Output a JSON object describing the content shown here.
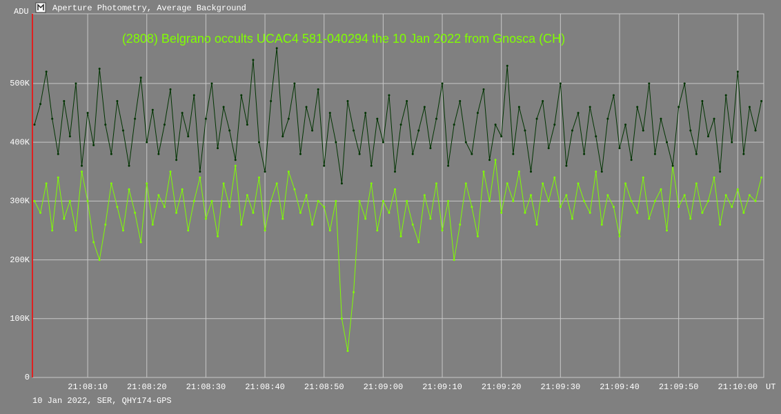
{
  "window_title": "Aperture Photometry, Average Background",
  "footer": "10 Jan 2022, SER, QHY174-GPS",
  "chart_data": {
    "type": "line",
    "title": "(2808) Belgrano occults UCAC4 581-040294 the 10 Jan 2022 from Gnosca (CH)",
    "y_label": "ADU",
    "x_label": "UT",
    "xlim": [
      76080.65,
      76204.4
    ],
    "ylim": [
      0,
      618500
    ],
    "xticks": [
      {
        "value": 76090,
        "label": "21:08:10"
      },
      {
        "value": 76100,
        "label": "21:08:20"
      },
      {
        "value": 76110,
        "label": "21:08:30"
      },
      {
        "value": 76120,
        "label": "21:08:40"
      },
      {
        "value": 76130,
        "label": "21:08:50"
      },
      {
        "value": 76140,
        "label": "21:09:00"
      },
      {
        "value": 76150,
        "label": "21:09:10"
      },
      {
        "value": 76160,
        "label": "21:09:20"
      },
      {
        "value": 76170,
        "label": "21:09:30"
      },
      {
        "value": 76180,
        "label": "21:09:40"
      },
      {
        "value": 76190,
        "label": "21:09:50"
      },
      {
        "value": 76200,
        "label": "21:10:00"
      }
    ],
    "yticks": [
      0,
      {
        "value": 100000,
        "label": "100K"
      },
      {
        "value": 200000,
        "label": "200K"
      },
      {
        "value": 300000,
        "label": "300K"
      },
      {
        "value": 400000,
        "label": "400K"
      },
      {
        "value": 500000,
        "label": "500K"
      }
    ],
    "grid": true,
    "x": [
      76081,
      76082,
      76083,
      76084,
      76085,
      76086,
      76087,
      76088,
      76089,
      76090,
      76091,
      76092,
      76093,
      76094,
      76095,
      76096,
      76097,
      76098,
      76099,
      76100,
      76101,
      76102,
      76103,
      76104,
      76105,
      76106,
      76107,
      76108,
      76109,
      76110,
      76111,
      76112,
      76113,
      76114,
      76115,
      76116,
      76117,
      76118,
      76119,
      76120,
      76121,
      76122,
      76123,
      76124,
      76125,
      76126,
      76127,
      76128,
      76129,
      76130,
      76131,
      76132,
      76133,
      76134,
      76135,
      76136,
      76137,
      76138,
      76139,
      76140,
      76141,
      76142,
      76143,
      76144,
      76145,
      76146,
      76147,
      76148,
      76149,
      76150,
      76151,
      76152,
      76153,
      76154,
      76155,
      76156,
      76157,
      76158,
      76159,
      76160,
      76161,
      76162,
      76163,
      76164,
      76165,
      76166,
      76167,
      76168,
      76169,
      76170,
      76171,
      76172,
      76173,
      76174,
      76175,
      76176,
      76177,
      76178,
      76179,
      76180,
      76181,
      76182,
      76183,
      76184,
      76185,
      76186,
      76187,
      76188,
      76189,
      76190,
      76191,
      76192,
      76193,
      76194,
      76195,
      76196,
      76197,
      76198,
      76199,
      76200,
      76201,
      76202,
      76203,
      76204
    ],
    "series": [
      {
        "color": "#003300",
        "values": [
          430000,
          465000,
          520000,
          440000,
          380000,
          470000,
          410000,
          500000,
          360000,
          450000,
          395000,
          525000,
          430000,
          380000,
          470000,
          420000,
          360000,
          440000,
          510000,
          400000,
          455000,
          380000,
          430000,
          490000,
          370000,
          450000,
          410000,
          480000,
          350000,
          440000,
          500000,
          390000,
          460000,
          420000,
          370000,
          480000,
          430000,
          540000,
          400000,
          350000,
          470000,
          560000,
          410000,
          440000,
          500000,
          380000,
          460000,
          420000,
          490000,
          360000,
          450000,
          400000,
          330000,
          470000,
          420000,
          380000,
          450000,
          360000,
          440000,
          400000,
          480000,
          350000,
          430000,
          470000,
          380000,
          420000,
          460000,
          390000,
          440000,
          500000,
          360000,
          430000,
          470000,
          400000,
          380000,
          450000,
          490000,
          370000,
          430000,
          410000,
          530000,
          380000,
          460000,
          420000,
          350000,
          440000,
          470000,
          390000,
          430000,
          500000,
          360000,
          420000,
          450000,
          380000,
          460000,
          410000,
          350000,
          440000,
          480000,
          390000,
          430000,
          370000,
          460000,
          420000,
          500000,
          380000,
          440000,
          400000,
          360000,
          460000,
          500000,
          420000,
          380000,
          470000,
          410000,
          440000,
          350000,
          480000,
          400000,
          520000,
          380000,
          460000,
          420000,
          470000
        ]
      },
      {
        "color": "#80ff00",
        "values": [
          300000,
          280000,
          330000,
          250000,
          340000,
          270000,
          300000,
          250000,
          350000,
          300000,
          230000,
          200000,
          260000,
          330000,
          290000,
          250000,
          320000,
          280000,
          230000,
          330000,
          260000,
          310000,
          290000,
          350000,
          280000,
          320000,
          250000,
          300000,
          340000,
          270000,
          300000,
          240000,
          330000,
          290000,
          360000,
          260000,
          310000,
          280000,
          340000,
          250000,
          300000,
          330000,
          270000,
          350000,
          320000,
          280000,
          310000,
          260000,
          300000,
          290000,
          250000,
          300000,
          100000,
          45000,
          145000,
          300000,
          270000,
          330000,
          250000,
          300000,
          280000,
          320000,
          240000,
          300000,
          260000,
          230000,
          310000,
          270000,
          330000,
          250000,
          300000,
          200000,
          260000,
          330000,
          290000,
          240000,
          350000,
          300000,
          370000,
          280000,
          330000,
          300000,
          350000,
          280000,
          310000,
          260000,
          330000,
          300000,
          340000,
          290000,
          310000,
          270000,
          330000,
          300000,
          280000,
          350000,
          260000,
          310000,
          290000,
          240000,
          330000,
          300000,
          280000,
          340000,
          270000,
          300000,
          320000,
          250000,
          360000,
          290000,
          310000,
          270000,
          330000,
          280000,
          300000,
          340000,
          260000,
          310000,
          290000,
          320000,
          280000,
          310000,
          300000,
          340000
        ]
      }
    ]
  }
}
